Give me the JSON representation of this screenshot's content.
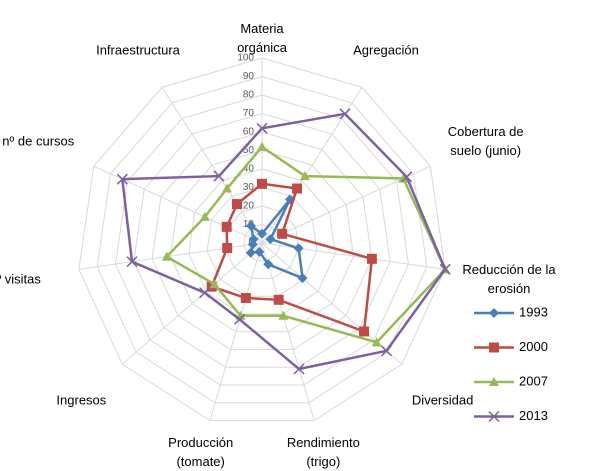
{
  "chart_data": {
    "type": "radar",
    "categories": [
      "Materia\norgánica",
      "Agregación",
      "Cobertura de\nsuelo (junio)",
      "Reducción de la\nerosión",
      "Diversidad",
      "Rendimiento\n(trigo)",
      "Producción\n(tomate)",
      "Ingresos",
      "nº visitas",
      "nº de cursos",
      "Infraestructura"
    ],
    "series": [
      {
        "name": "1993",
        "color": "#4a7ebb",
        "marker": "diamond",
        "values": [
          5,
          28,
          5,
          20,
          29,
          12,
          5,
          8,
          5,
          5,
          11
        ]
      },
      {
        "name": "2000",
        "color": "#be4b48",
        "marker": "square",
        "values": [
          32,
          35,
          12,
          60,
          73,
          32,
          31,
          36,
          19,
          21,
          25
        ]
      },
      {
        "name": "2007",
        "color": "#98b954",
        "marker": "triangle",
        "values": [
          52,
          43,
          84,
          100,
          82,
          41,
          41,
          34,
          52,
          34,
          35
        ]
      },
      {
        "name": "2013",
        "color": "#7d60a0",
        "marker": "x",
        "values": [
          62,
          83,
          86,
          100,
          89,
          71,
          43,
          41,
          71,
          83,
          43
        ]
      }
    ],
    "ylim": [
      0,
      100
    ],
    "yticks": [
      0,
      10,
      20,
      30,
      40,
      50,
      60,
      70,
      80,
      90,
      100
    ],
    "grid": true,
    "legend": "right"
  }
}
